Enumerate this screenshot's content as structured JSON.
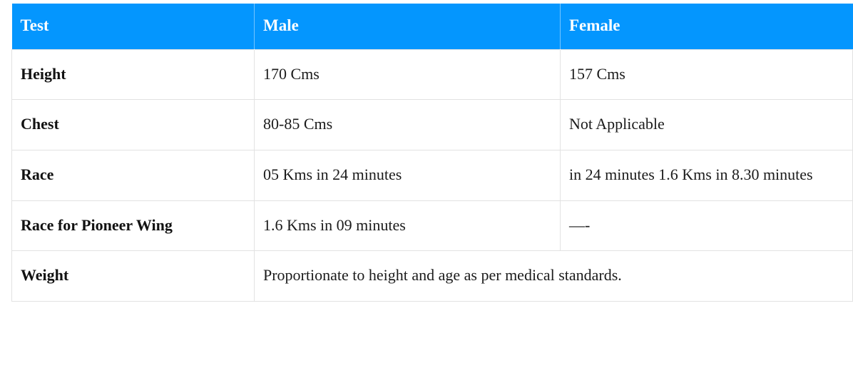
{
  "theme": {
    "page-bg": "#ffffff",
    "header-bg": "#0496fe",
    "header-text": "#ffffff",
    "border": "#e2e2e2",
    "text": "#1b1b1b"
  },
  "table": {
    "header": {
      "test": "Test",
      "male": "Male",
      "female": "Female"
    },
    "rows": [
      {
        "label": "Height",
        "male": "170 Cms",
        "female": "157 Cms"
      },
      {
        "label": "Chest",
        "male": "80-85 Cms",
        "female": "Not Applicable"
      },
      {
        "label": "Race",
        "male": "05 Kms in 24 minutes",
        "female": "in 24 minutes 1.6 Kms in 8.30 minutes"
      },
      {
        "label": "Race for Pioneer Wing",
        "male": "1.6 Kms in 09 minutes",
        "female": "—-"
      },
      {
        "label": "Weight",
        "combined": "Proportionate to height and age as per medical standards."
      }
    ]
  }
}
